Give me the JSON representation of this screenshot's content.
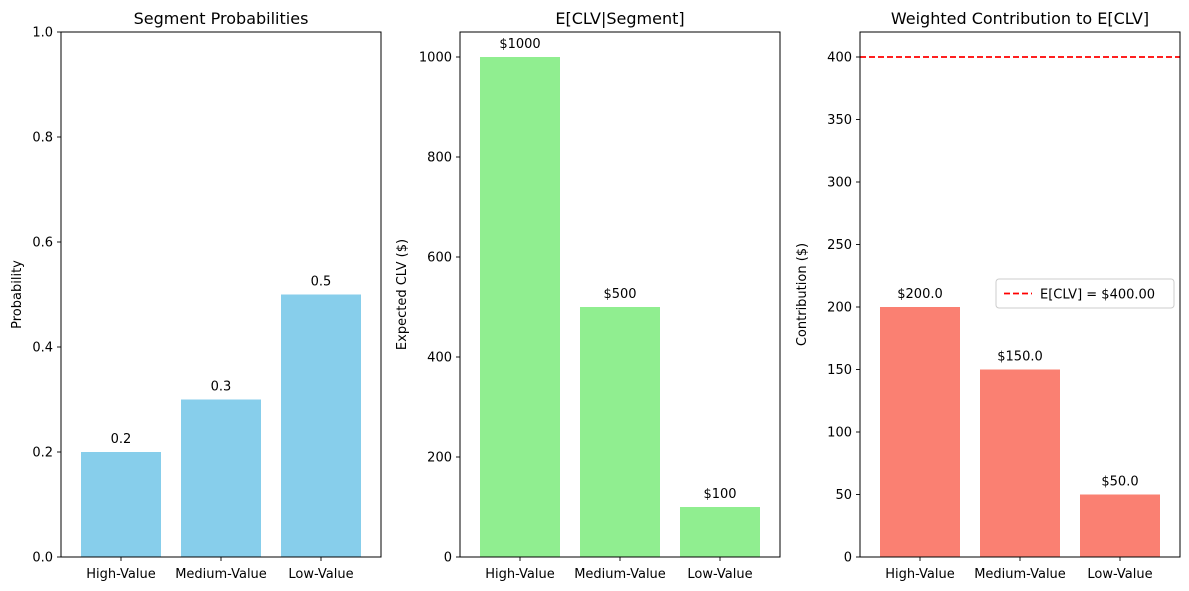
{
  "chart_data": [
    {
      "type": "bar",
      "title": "Segment Probabilities",
      "xlabel": "",
      "ylabel": "Probability",
      "categories": [
        "High-Value",
        "Medium-Value",
        "Low-Value"
      ],
      "values": [
        0.2,
        0.3,
        0.5
      ],
      "value_labels": [
        "0.2",
        "0.3",
        "0.5"
      ],
      "ylim": [
        0,
        1.0
      ],
      "yticks": [
        0.0,
        0.2,
        0.4,
        0.6,
        0.8,
        1.0
      ],
      "ytick_labels": [
        "0.0",
        "0.2",
        "0.4",
        "0.6",
        "0.8",
        "1.0"
      ],
      "color": "#87CEEB",
      "grid": false
    },
    {
      "type": "bar",
      "title": "E[CLV|Segment]",
      "xlabel": "",
      "ylabel": "Expected CLV ($)",
      "categories": [
        "High-Value",
        "Medium-Value",
        "Low-Value"
      ],
      "values": [
        1000,
        500,
        100
      ],
      "value_labels": [
        "$1000",
        "$500",
        "$100"
      ],
      "ylim": [
        0,
        1050
      ],
      "yticks": [
        0,
        200,
        400,
        600,
        800,
        1000
      ],
      "ytick_labels": [
        "0",
        "200",
        "400",
        "600",
        "800",
        "1000"
      ],
      "color": "#90EE90",
      "grid": false
    },
    {
      "type": "bar",
      "title": "Weighted Contribution to E[CLV]",
      "xlabel": "",
      "ylabel": "Contribution ($)",
      "categories": [
        "High-Value",
        "Medium-Value",
        "Low-Value"
      ],
      "values": [
        200,
        150,
        50
      ],
      "value_labels": [
        "$200.0",
        "$150.0",
        "$50.0"
      ],
      "ylim": [
        0,
        420
      ],
      "yticks": [
        0,
        50,
        100,
        150,
        200,
        250,
        300,
        350,
        400
      ],
      "ytick_labels": [
        "0",
        "50",
        "100",
        "150",
        "200",
        "250",
        "300",
        "350",
        "400"
      ],
      "color": "#FA8072",
      "grid": false,
      "reference_line": {
        "value": 400,
        "label": "E[CLV] = $400.00",
        "color": "#ff0000",
        "style": "dashed"
      },
      "legend_placement": "center-right"
    }
  ]
}
